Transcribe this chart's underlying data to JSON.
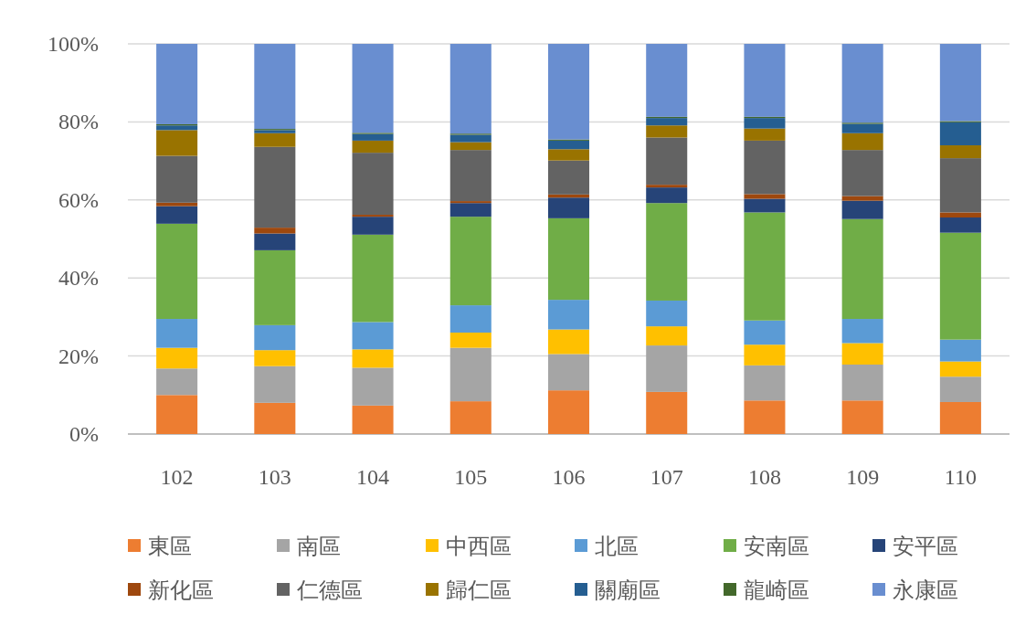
{
  "chart_data": {
    "type": "bar",
    "stacked": true,
    "categories": [
      "102",
      "103",
      "104",
      "105",
      "106",
      "107",
      "108",
      "109",
      "110"
    ],
    "ylim": [
      0,
      100
    ],
    "yticks": [
      {
        "value": 0,
        "label": "0%"
      },
      {
        "value": 20,
        "label": "20%"
      },
      {
        "value": 40,
        "label": "40%"
      },
      {
        "value": 60,
        "label": "60%"
      },
      {
        "value": 80,
        "label": "80%"
      },
      {
        "value": 100,
        "label": "100%"
      }
    ],
    "grid": "y",
    "legend": "bottom",
    "series": [
      {
        "name": "東區",
        "color": "#ed7d31",
        "values": [
          10.0,
          8.0,
          7.3,
          8.4,
          11.2,
          10.8,
          8.6,
          8.6,
          8.2
        ]
      },
      {
        "name": "南區",
        "color": "#a5a5a5",
        "values": [
          6.8,
          9.4,
          9.7,
          13.7,
          9.3,
          11.9,
          9.0,
          9.2,
          6.5
        ]
      },
      {
        "name": "中西區",
        "color": "#ffc000",
        "values": [
          5.3,
          4.1,
          4.7,
          3.9,
          6.3,
          4.9,
          5.3,
          5.5,
          3.9
        ]
      },
      {
        "name": "北區",
        "color": "#5b9bd5",
        "values": [
          7.4,
          6.4,
          7.0,
          7.0,
          7.6,
          6.6,
          6.2,
          6.2,
          5.6
        ]
      },
      {
        "name": "安南區",
        "color": "#70ad47",
        "values": [
          24.4,
          19.2,
          22.4,
          22.7,
          20.9,
          25.0,
          27.7,
          25.6,
          27.4
        ]
      },
      {
        "name": "安平區",
        "color": "#264478",
        "values": [
          4.5,
          4.3,
          4.6,
          3.5,
          5.3,
          4.0,
          3.5,
          4.7,
          3.9
        ]
      },
      {
        "name": "新化區",
        "color": "#9e480e",
        "values": [
          0.9,
          1.5,
          0.5,
          0.5,
          0.8,
          0.7,
          1.2,
          1.2,
          1.3
        ]
      },
      {
        "name": "仁德區",
        "color": "#636363",
        "values": [
          12.0,
          20.7,
          15.9,
          13.1,
          8.7,
          12.1,
          13.7,
          11.8,
          13.9
        ]
      },
      {
        "name": "歸仁區",
        "color": "#997300",
        "values": [
          6.6,
          3.5,
          3.1,
          2.0,
          2.9,
          3.1,
          3.1,
          4.3,
          3.3
        ]
      },
      {
        "name": "關廟區",
        "color": "#255e91",
        "values": [
          1.2,
          0.8,
          1.7,
          1.9,
          2.2,
          1.9,
          2.7,
          2.4,
          5.9
        ]
      },
      {
        "name": "龍崎區",
        "color": "#43682b",
        "values": [
          0.3,
          0.3,
          0.3,
          0.3,
          0.3,
          0.3,
          0.3,
          0.3,
          0.3
        ]
      },
      {
        "name": "永康區",
        "color": "#698ed0",
        "values": [
          20.6,
          21.8,
          22.8,
          23.0,
          24.5,
          18.7,
          18.7,
          20.2,
          19.8
        ]
      }
    ]
  }
}
